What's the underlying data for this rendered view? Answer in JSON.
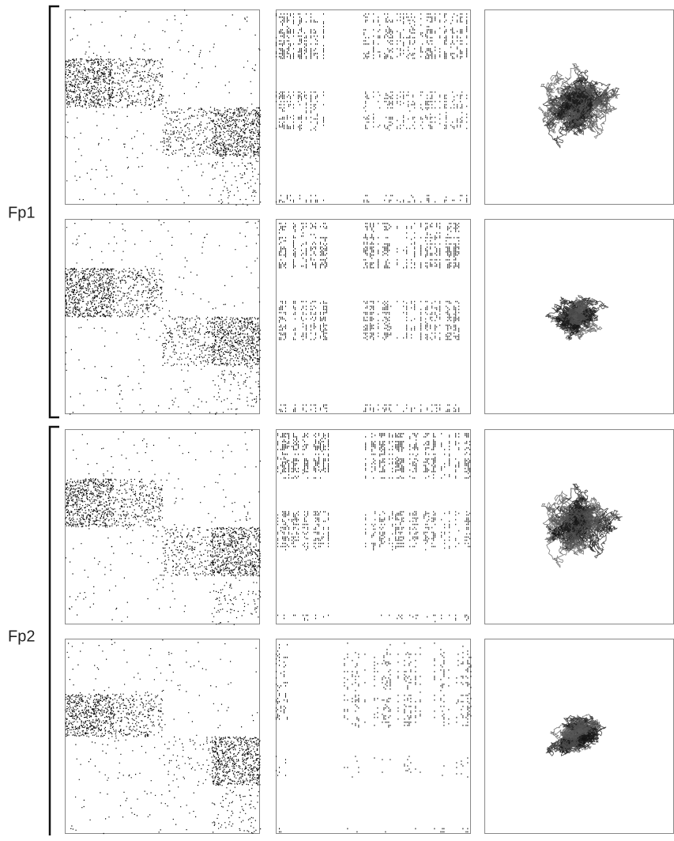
{
  "groups": [
    {
      "label": "Fp1"
    },
    {
      "label": "Fp2"
    }
  ]
}
